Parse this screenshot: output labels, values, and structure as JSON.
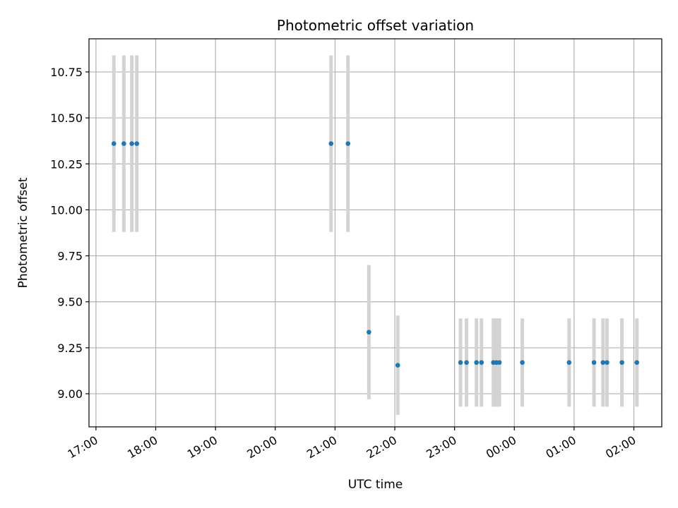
{
  "chart_data": {
    "type": "scatter",
    "title": "Photometric offset variation",
    "xlabel": "UTC time",
    "ylabel": "Photometric offset",
    "xaxis": "time (hours, UTC)",
    "xlim": [
      "16:53",
      "02:28"
    ],
    "ylim": [
      8.82,
      10.93
    ],
    "grid": true,
    "x_ticks": [
      "17:00",
      "18:00",
      "19:00",
      "20:00",
      "21:00",
      "22:00",
      "23:00",
      "00:00",
      "01:00",
      "02:00"
    ],
    "y_ticks": [
      9.0,
      9.25,
      9.5,
      9.75,
      10.0,
      10.25,
      10.5,
      10.75
    ],
    "y_tick_labels": [
      "9.00",
      "9.25",
      "9.50",
      "9.75",
      "10.00",
      "10.25",
      "10.50",
      "10.75"
    ],
    "colors": {
      "point": "#1f77b4",
      "error_bar": "#d3d3d3",
      "grid": "#b0b0b0"
    },
    "points": [
      {
        "t": "17:18",
        "y": 10.36,
        "err": 0.48
      },
      {
        "t": "17:28",
        "y": 10.36,
        "err": 0.48
      },
      {
        "t": "17:36",
        "y": 10.36,
        "err": 0.48
      },
      {
        "t": "17:41",
        "y": 10.36,
        "err": 0.48
      },
      {
        "t": "20:56",
        "y": 10.36,
        "err": 0.48
      },
      {
        "t": "21:13",
        "y": 10.36,
        "err": 0.48
      },
      {
        "t": "21:34",
        "y": 9.335,
        "err": 0.365
      },
      {
        "t": "22:03",
        "y": 9.155,
        "err": 0.27
      },
      {
        "t": "23:06",
        "y": 9.17,
        "err": 0.24
      },
      {
        "t": "23:12",
        "y": 9.17,
        "err": 0.24
      },
      {
        "t": "23:22",
        "y": 9.17,
        "err": 0.24
      },
      {
        "t": "23:27",
        "y": 9.17,
        "err": 0.24
      },
      {
        "t": "23:39",
        "y": 9.17,
        "err": 0.24
      },
      {
        "t": "23:42",
        "y": 9.17,
        "err": 0.24
      },
      {
        "t": "23:45",
        "y": 9.17,
        "err": 0.24
      },
      {
        "t": "00:08",
        "y": 9.17,
        "err": 0.24
      },
      {
        "t": "00:55",
        "y": 9.17,
        "err": 0.24
      },
      {
        "t": "01:20",
        "y": 9.17,
        "err": 0.24
      },
      {
        "t": "01:29",
        "y": 9.17,
        "err": 0.24
      },
      {
        "t": "01:33",
        "y": 9.17,
        "err": 0.24
      },
      {
        "t": "01:48",
        "y": 9.17,
        "err": 0.24
      },
      {
        "t": "02:03",
        "y": 9.17,
        "err": 0.24
      }
    ]
  }
}
